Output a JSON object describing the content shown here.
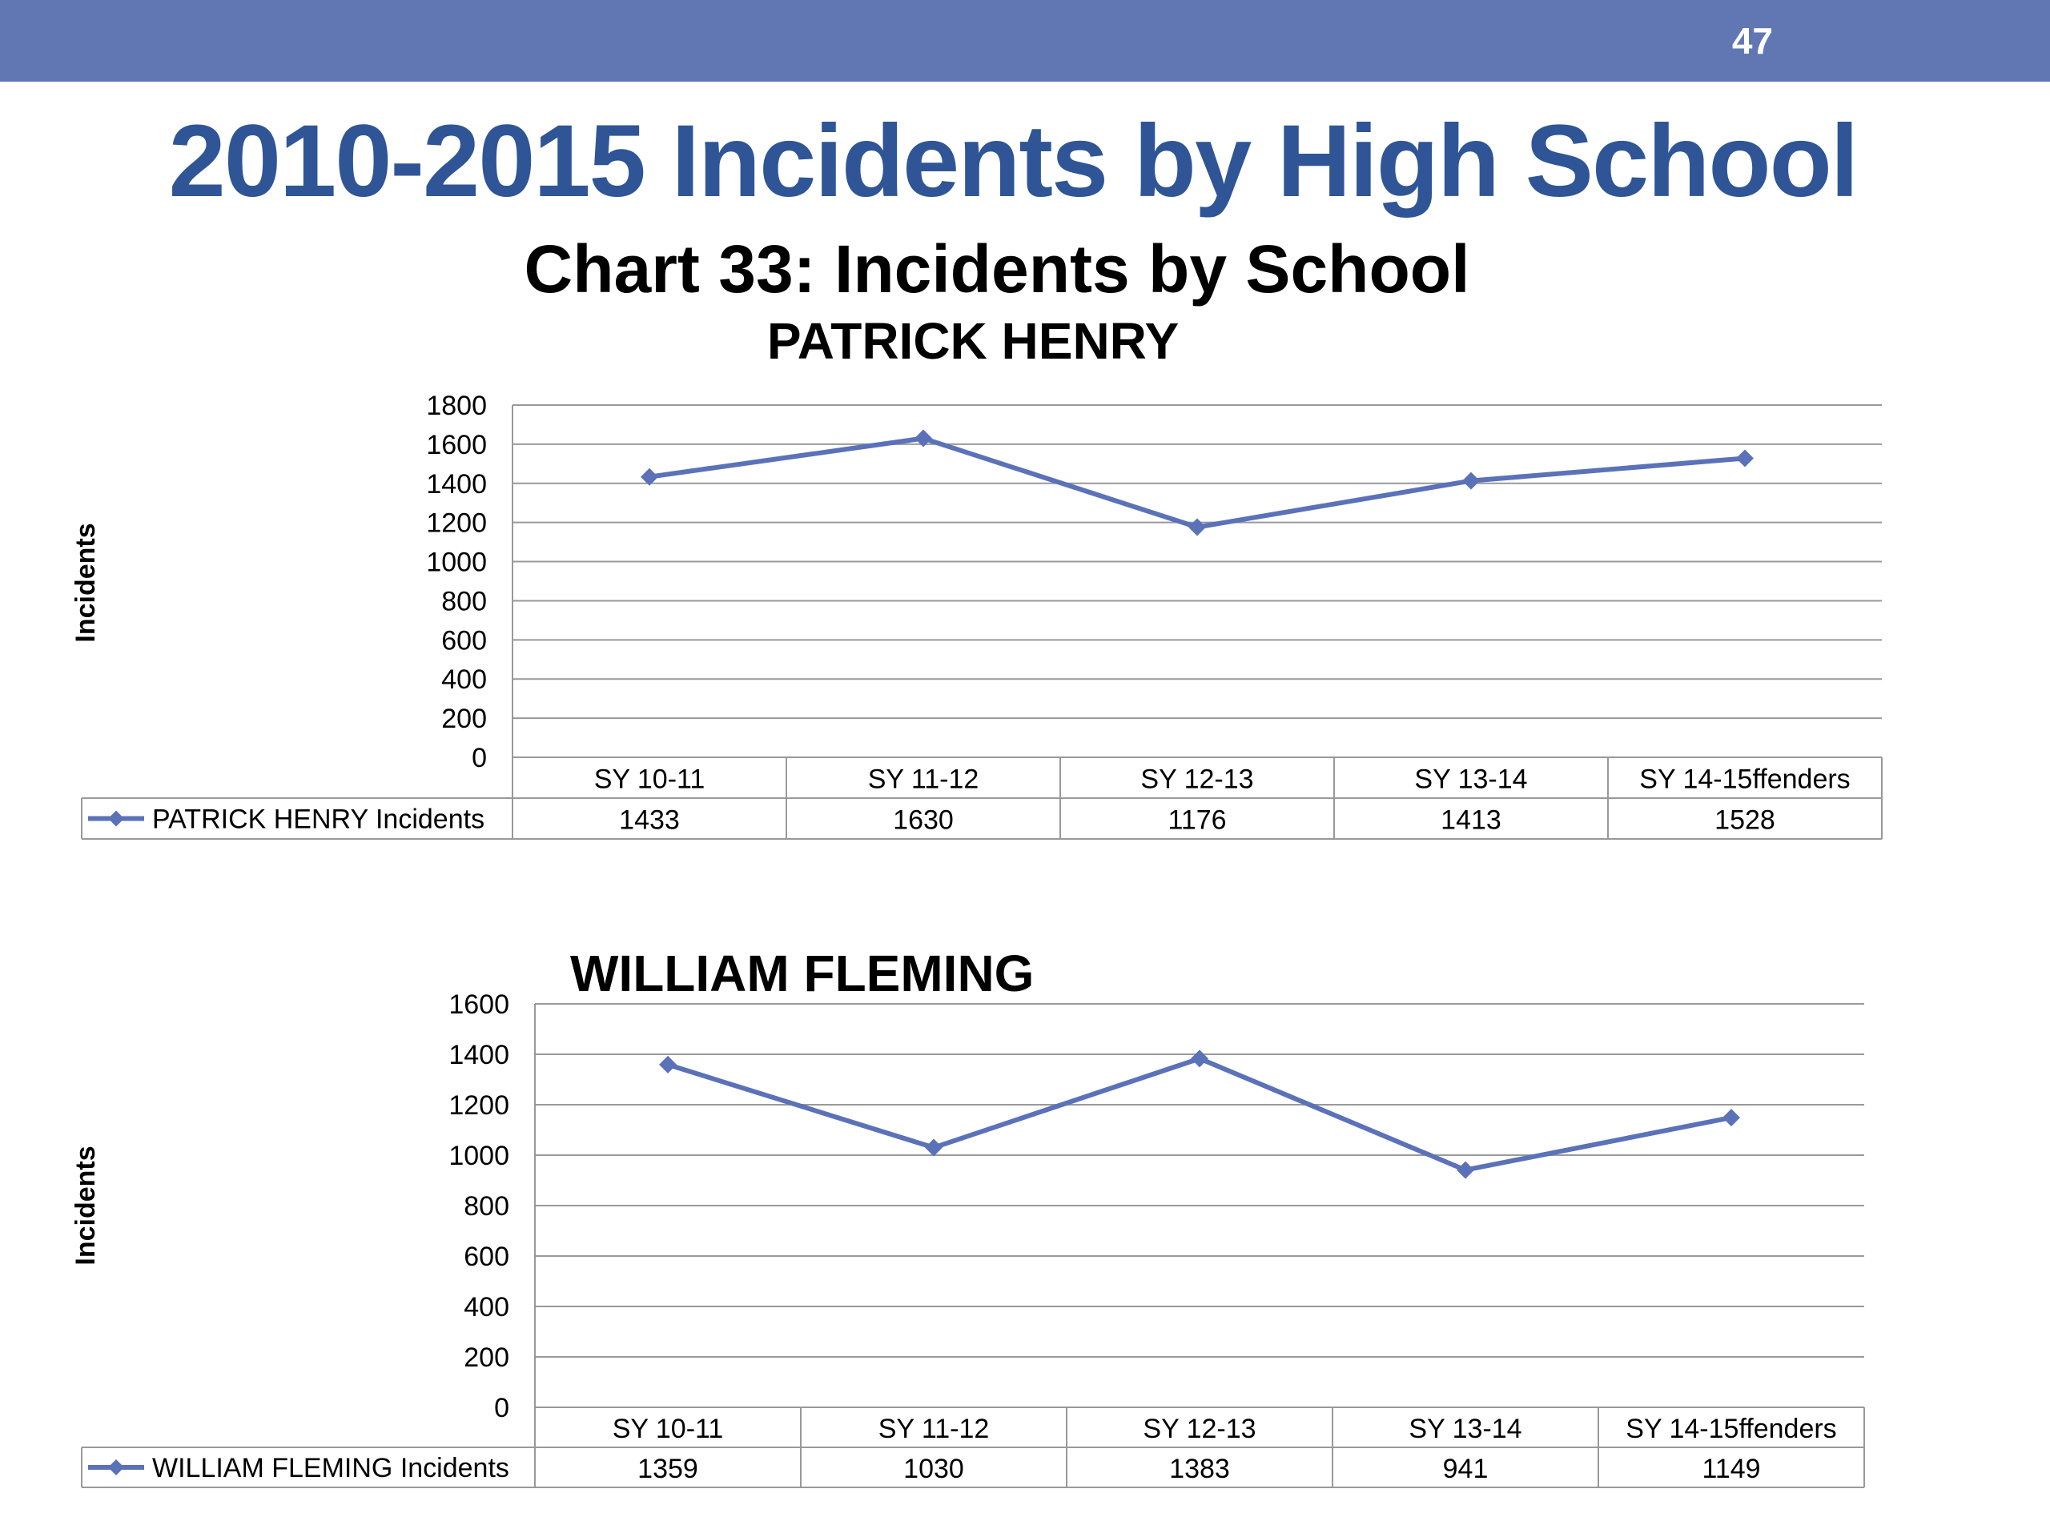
{
  "header": {
    "page_number": "47"
  },
  "slide": {
    "title": "2010-2015 Incidents by High School",
    "chart_heading": "Chart 33: Incidents by School"
  },
  "colors": {
    "accent": "#6077b4",
    "title": "#2f5597",
    "line": "#5b72b8",
    "grid": "#999999"
  },
  "chart_data": [
    {
      "type": "line",
      "title": "PATRICK HENRY",
      "ylabel": "Incidents",
      "categories": [
        "SY 10-11",
        "SY 11-12",
        "SY 12-13",
        "SY 13-14",
        "SY 14-15ffenders"
      ],
      "series": [
        {
          "name": "PATRICK HENRY Incidents",
          "values": [
            1433,
            1630,
            1176,
            1413,
            1528
          ]
        }
      ],
      "ylim": [
        0,
        1800
      ],
      "yticks": [
        0,
        200,
        400,
        600,
        800,
        1000,
        1200,
        1400,
        1600,
        1800
      ],
      "grid": true,
      "data_table": true
    },
    {
      "type": "line",
      "title": "WILLIAM FLEMING",
      "ylabel": "Incidents",
      "categories": [
        "SY 10-11",
        "SY 11-12",
        "SY 12-13",
        "SY 13-14",
        "SY 14-15ffenders"
      ],
      "series": [
        {
          "name": "WILLIAM FLEMING Incidents",
          "values": [
            1359,
            1030,
            1383,
            941,
            1149
          ]
        }
      ],
      "ylim": [
        0,
        1600
      ],
      "yticks": [
        0,
        200,
        400,
        600,
        800,
        1000,
        1200,
        1400,
        1600
      ],
      "grid": true,
      "data_table": true
    }
  ]
}
